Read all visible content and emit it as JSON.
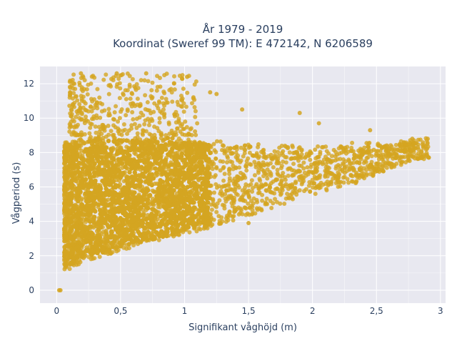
{
  "chart_data": {
    "type": "scatter",
    "title_line1": "År 1979 - 2019",
    "title_line2": "Koordinat (Sweref 99 TM): E 472142, N 6206589",
    "xlabel": "Signifikant våghöjd (m)",
    "ylabel": "Vågperiod (s)",
    "xlim": [
      -0.13,
      3.04
    ],
    "ylim": [
      -0.75,
      13.0
    ],
    "x_ticks": [
      0,
      0.5,
      1,
      1.5,
      2,
      2.5,
      3
    ],
    "x_tick_labels": [
      "0",
      "0,5",
      "1",
      "1,5",
      "2",
      "2,5",
      "3"
    ],
    "y_ticks": [
      0,
      2,
      4,
      6,
      8,
      10,
      12
    ],
    "y_tick_labels": [
      "0",
      "2",
      "4",
      "6",
      "8",
      "10",
      "12"
    ],
    "grid": true,
    "legend": "none",
    "marker_color": "#D4A521",
    "background_color": "#E8E8F0",
    "grid_color": "#FFFFFF",
    "point_cloud": {
      "note": "dense cloud of tens of thousands of observations",
      "lower_envelope": [
        [
          0.05,
          1.2
        ],
        [
          0.1,
          1.2
        ],
        [
          0.2,
          1.6
        ],
        [
          0.5,
          2.3
        ],
        [
          1.0,
          3.2
        ],
        [
          1.5,
          4.3
        ],
        [
          2.0,
          5.5
        ],
        [
          2.5,
          6.6
        ],
        [
          2.8,
          7.5
        ]
      ],
      "upper_envelope": [
        [
          0.1,
          8.6
        ],
        [
          0.3,
          9.0
        ],
        [
          0.8,
          8.9
        ],
        [
          1.2,
          8.7
        ],
        [
          1.6,
          8.5
        ],
        [
          2.0,
          8.4
        ],
        [
          2.5,
          8.6
        ],
        [
          2.9,
          8.9
        ]
      ],
      "swell_band": {
        "x_range": [
          0.1,
          1.1
        ],
        "y_range": [
          9.0,
          12.6
        ]
      }
    },
    "highlight_points": [
      {
        "x": 0.02,
        "y": 0.0
      },
      {
        "x": 0.03,
        "y": 0.0
      },
      {
        "x": 0.52,
        "y": 3.9
      },
      {
        "x": 1.5,
        "y": 3.9
      },
      {
        "x": 2.9,
        "y": 8.8
      },
      {
        "x": 2.78,
        "y": 8.8
      },
      {
        "x": 2.55,
        "y": 8.3
      },
      {
        "x": 2.45,
        "y": 9.3
      },
      {
        "x": 2.05,
        "y": 9.7
      },
      {
        "x": 1.9,
        "y": 10.3
      },
      {
        "x": 1.45,
        "y": 10.5
      },
      {
        "x": 1.02,
        "y": 12.4
      },
      {
        "x": 0.98,
        "y": 12.3
      },
      {
        "x": 0.7,
        "y": 12.6
      },
      {
        "x": 0.47,
        "y": 12.6
      },
      {
        "x": 0.19,
        "y": 12.6
      },
      {
        "x": 1.25,
        "y": 11.4
      },
      {
        "x": 1.2,
        "y": 11.5
      }
    ]
  }
}
